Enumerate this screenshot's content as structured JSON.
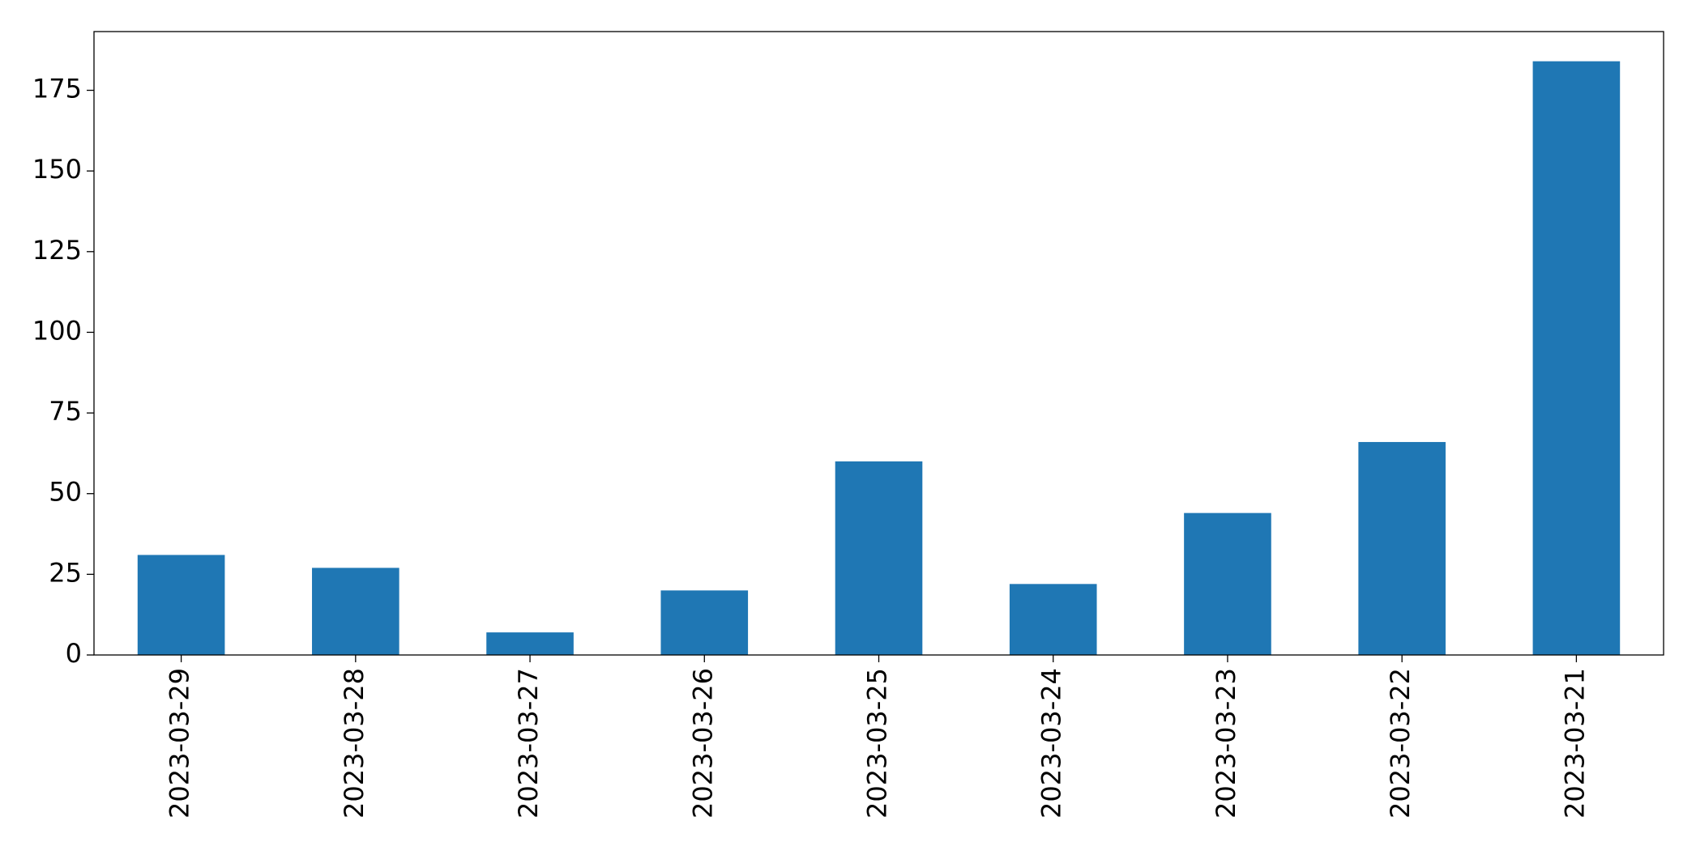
{
  "chart_data": {
    "type": "bar",
    "categories": [
      "2023-03-29",
      "2023-03-28",
      "2023-03-27",
      "2023-03-26",
      "2023-03-25",
      "2023-03-24",
      "2023-03-23",
      "2023-03-22",
      "2023-03-21"
    ],
    "values": [
      31,
      27,
      7,
      20,
      60,
      22,
      44,
      66,
      184
    ],
    "color": "#1f77b4",
    "ylim": [
      0,
      193.2
    ],
    "yticks": [
      0,
      25,
      50,
      75,
      100,
      125,
      150,
      175
    ],
    "grid": false
  }
}
